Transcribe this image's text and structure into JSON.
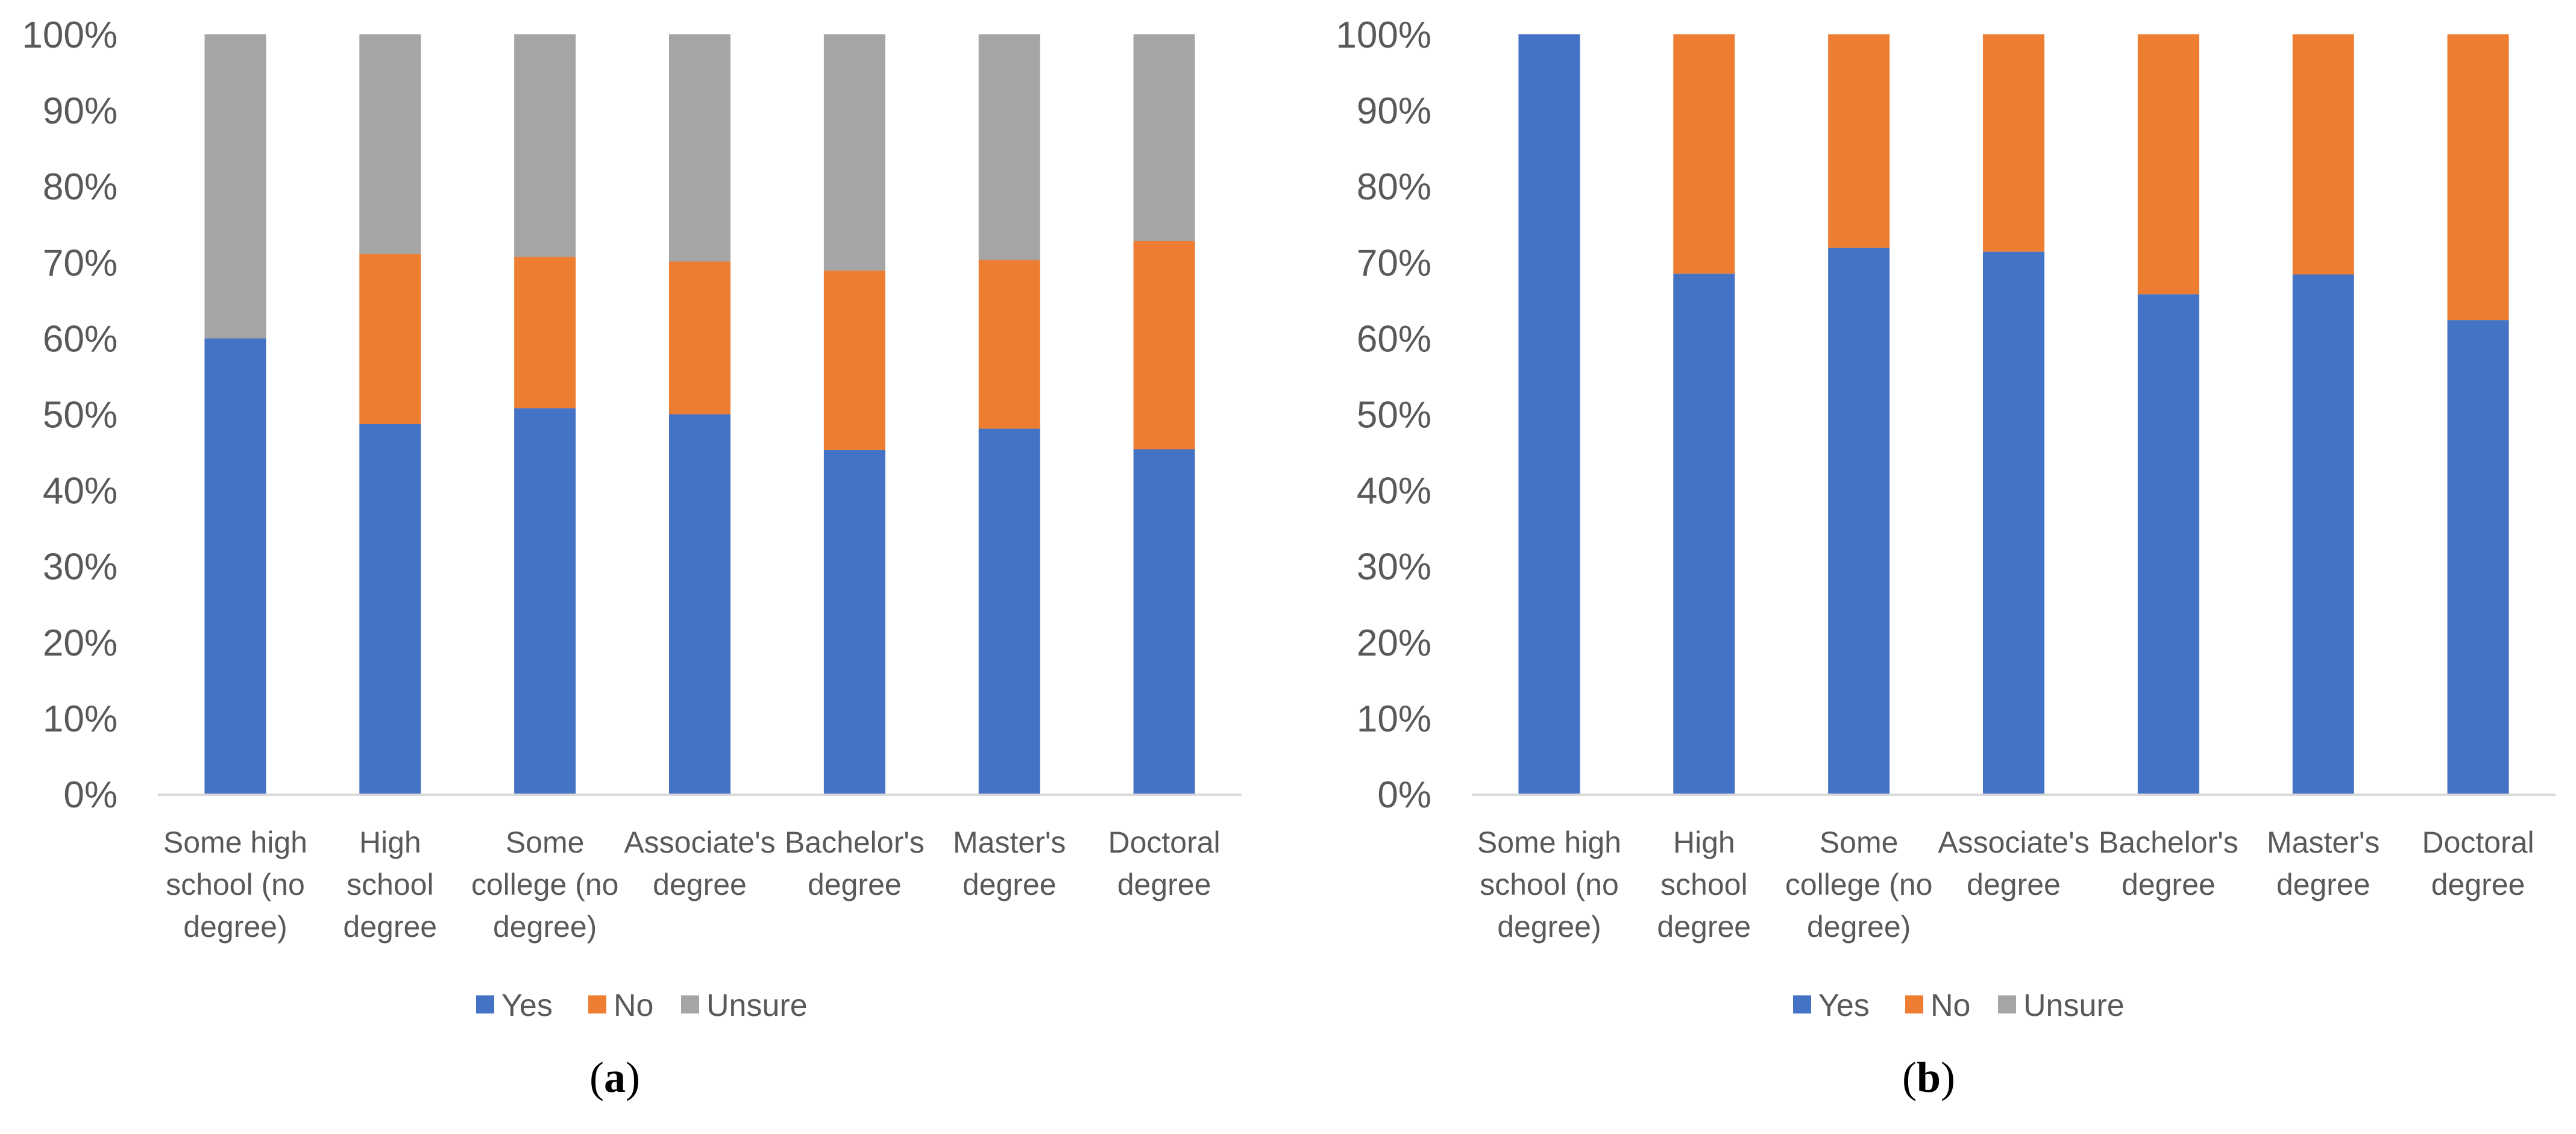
{
  "chart_data": [
    {
      "type": "bar",
      "stacked": true,
      "percent_stacked": true,
      "caption_open": "(",
      "caption_letter": "a",
      "caption_close": ")",
      "categories": [
        [
          "Some high",
          "school (no",
          "degree)"
        ],
        [
          "High",
          "school",
          "degree"
        ],
        [
          "Some",
          "college (no",
          "degree)"
        ],
        [
          "Associate's",
          "degree"
        ],
        [
          "Bachelor's",
          "degree"
        ],
        [
          "Master's",
          "degree"
        ],
        [
          "Doctoral",
          "degree"
        ]
      ],
      "series": [
        {
          "name": "Yes",
          "color": "#4472C4",
          "values": [
            60,
            48.7,
            50.8,
            50.0,
            45.3,
            48.1,
            45.4
          ]
        },
        {
          "name": "No",
          "color": "#ED7D31",
          "values": [
            0,
            22.4,
            19.9,
            20.1,
            23.6,
            22.2,
            27.4
          ]
        },
        {
          "name": "Unsure",
          "color": "#A5A5A5",
          "values": [
            40,
            28.9,
            29.3,
            29.9,
            31.1,
            29.7,
            27.2
          ]
        }
      ],
      "y_ticks": [
        "0%",
        "10%",
        "20%",
        "30%",
        "40%",
        "50%",
        "60%",
        "70%",
        "80%",
        "90%",
        "100%"
      ],
      "ylim": [
        0,
        100
      ],
      "legend_position": "bottom"
    },
    {
      "type": "bar",
      "stacked": true,
      "percent_stacked": true,
      "caption_open": "(",
      "caption_letter": "b",
      "caption_close": ")",
      "categories": [
        [
          "Some high",
          "school (no",
          "degree)"
        ],
        [
          "High",
          "school",
          "degree"
        ],
        [
          "Some",
          "college (no",
          "degree)"
        ],
        [
          "Associate's",
          "degree"
        ],
        [
          "Bachelor's",
          "degree"
        ],
        [
          "Master's",
          "degree"
        ],
        [
          "Doctoral",
          "degree"
        ]
      ],
      "series": [
        {
          "name": "Yes",
          "color": "#4472C4",
          "values": [
            100,
            68.5,
            71.9,
            71.4,
            65.8,
            68.4,
            62.4
          ]
        },
        {
          "name": "No",
          "color": "#ED7D31",
          "values": [
            0,
            31.5,
            28.1,
            28.6,
            34.2,
            31.6,
            37.6
          ]
        },
        {
          "name": "Unsure",
          "color": "#A5A5A5",
          "values": [
            0,
            0,
            0,
            0,
            0,
            0,
            0
          ]
        }
      ],
      "y_ticks": [
        "0%",
        "10%",
        "20%",
        "30%",
        "40%",
        "50%",
        "60%",
        "70%",
        "80%",
        "90%",
        "100%"
      ],
      "ylim": [
        0,
        100
      ],
      "legend_position": "bottom"
    }
  ]
}
